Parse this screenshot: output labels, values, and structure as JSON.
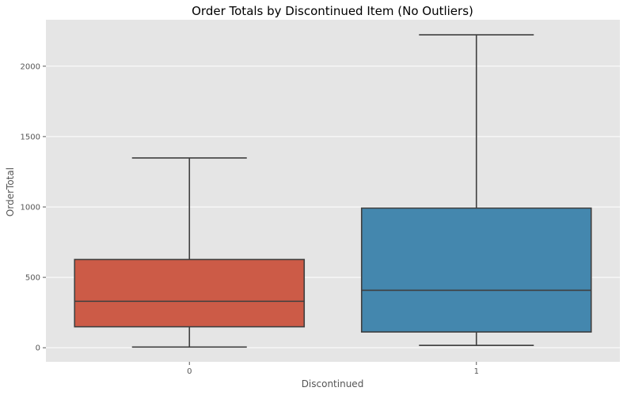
{
  "chart_data": {
    "type": "boxplot",
    "title": "Order Totals by Discontinued Item (No Outliers)",
    "xlabel": "Discontinued",
    "ylabel": "OrderTotal",
    "categories": [
      "0",
      "1"
    ],
    "boxes": [
      {
        "category": "0",
        "whisker_low": 4.8,
        "q1": 149,
        "median": 330,
        "q3": 627,
        "whisker_high": 1348,
        "color": "#cc5b47"
      },
      {
        "category": "1",
        "whisker_low": 17,
        "q1": 112,
        "median": 408,
        "q3": 992,
        "whisker_high": 2223,
        "color": "#4487ae"
      }
    ],
    "ylim": [
      -100,
      2330
    ],
    "yticks": [
      0,
      500,
      1000,
      1500,
      2000
    ],
    "grid": true,
    "style": {
      "plot_bg": "#e5e5e5",
      "grid_color": "#ffffff",
      "line_color": "#3f3f3f"
    }
  }
}
